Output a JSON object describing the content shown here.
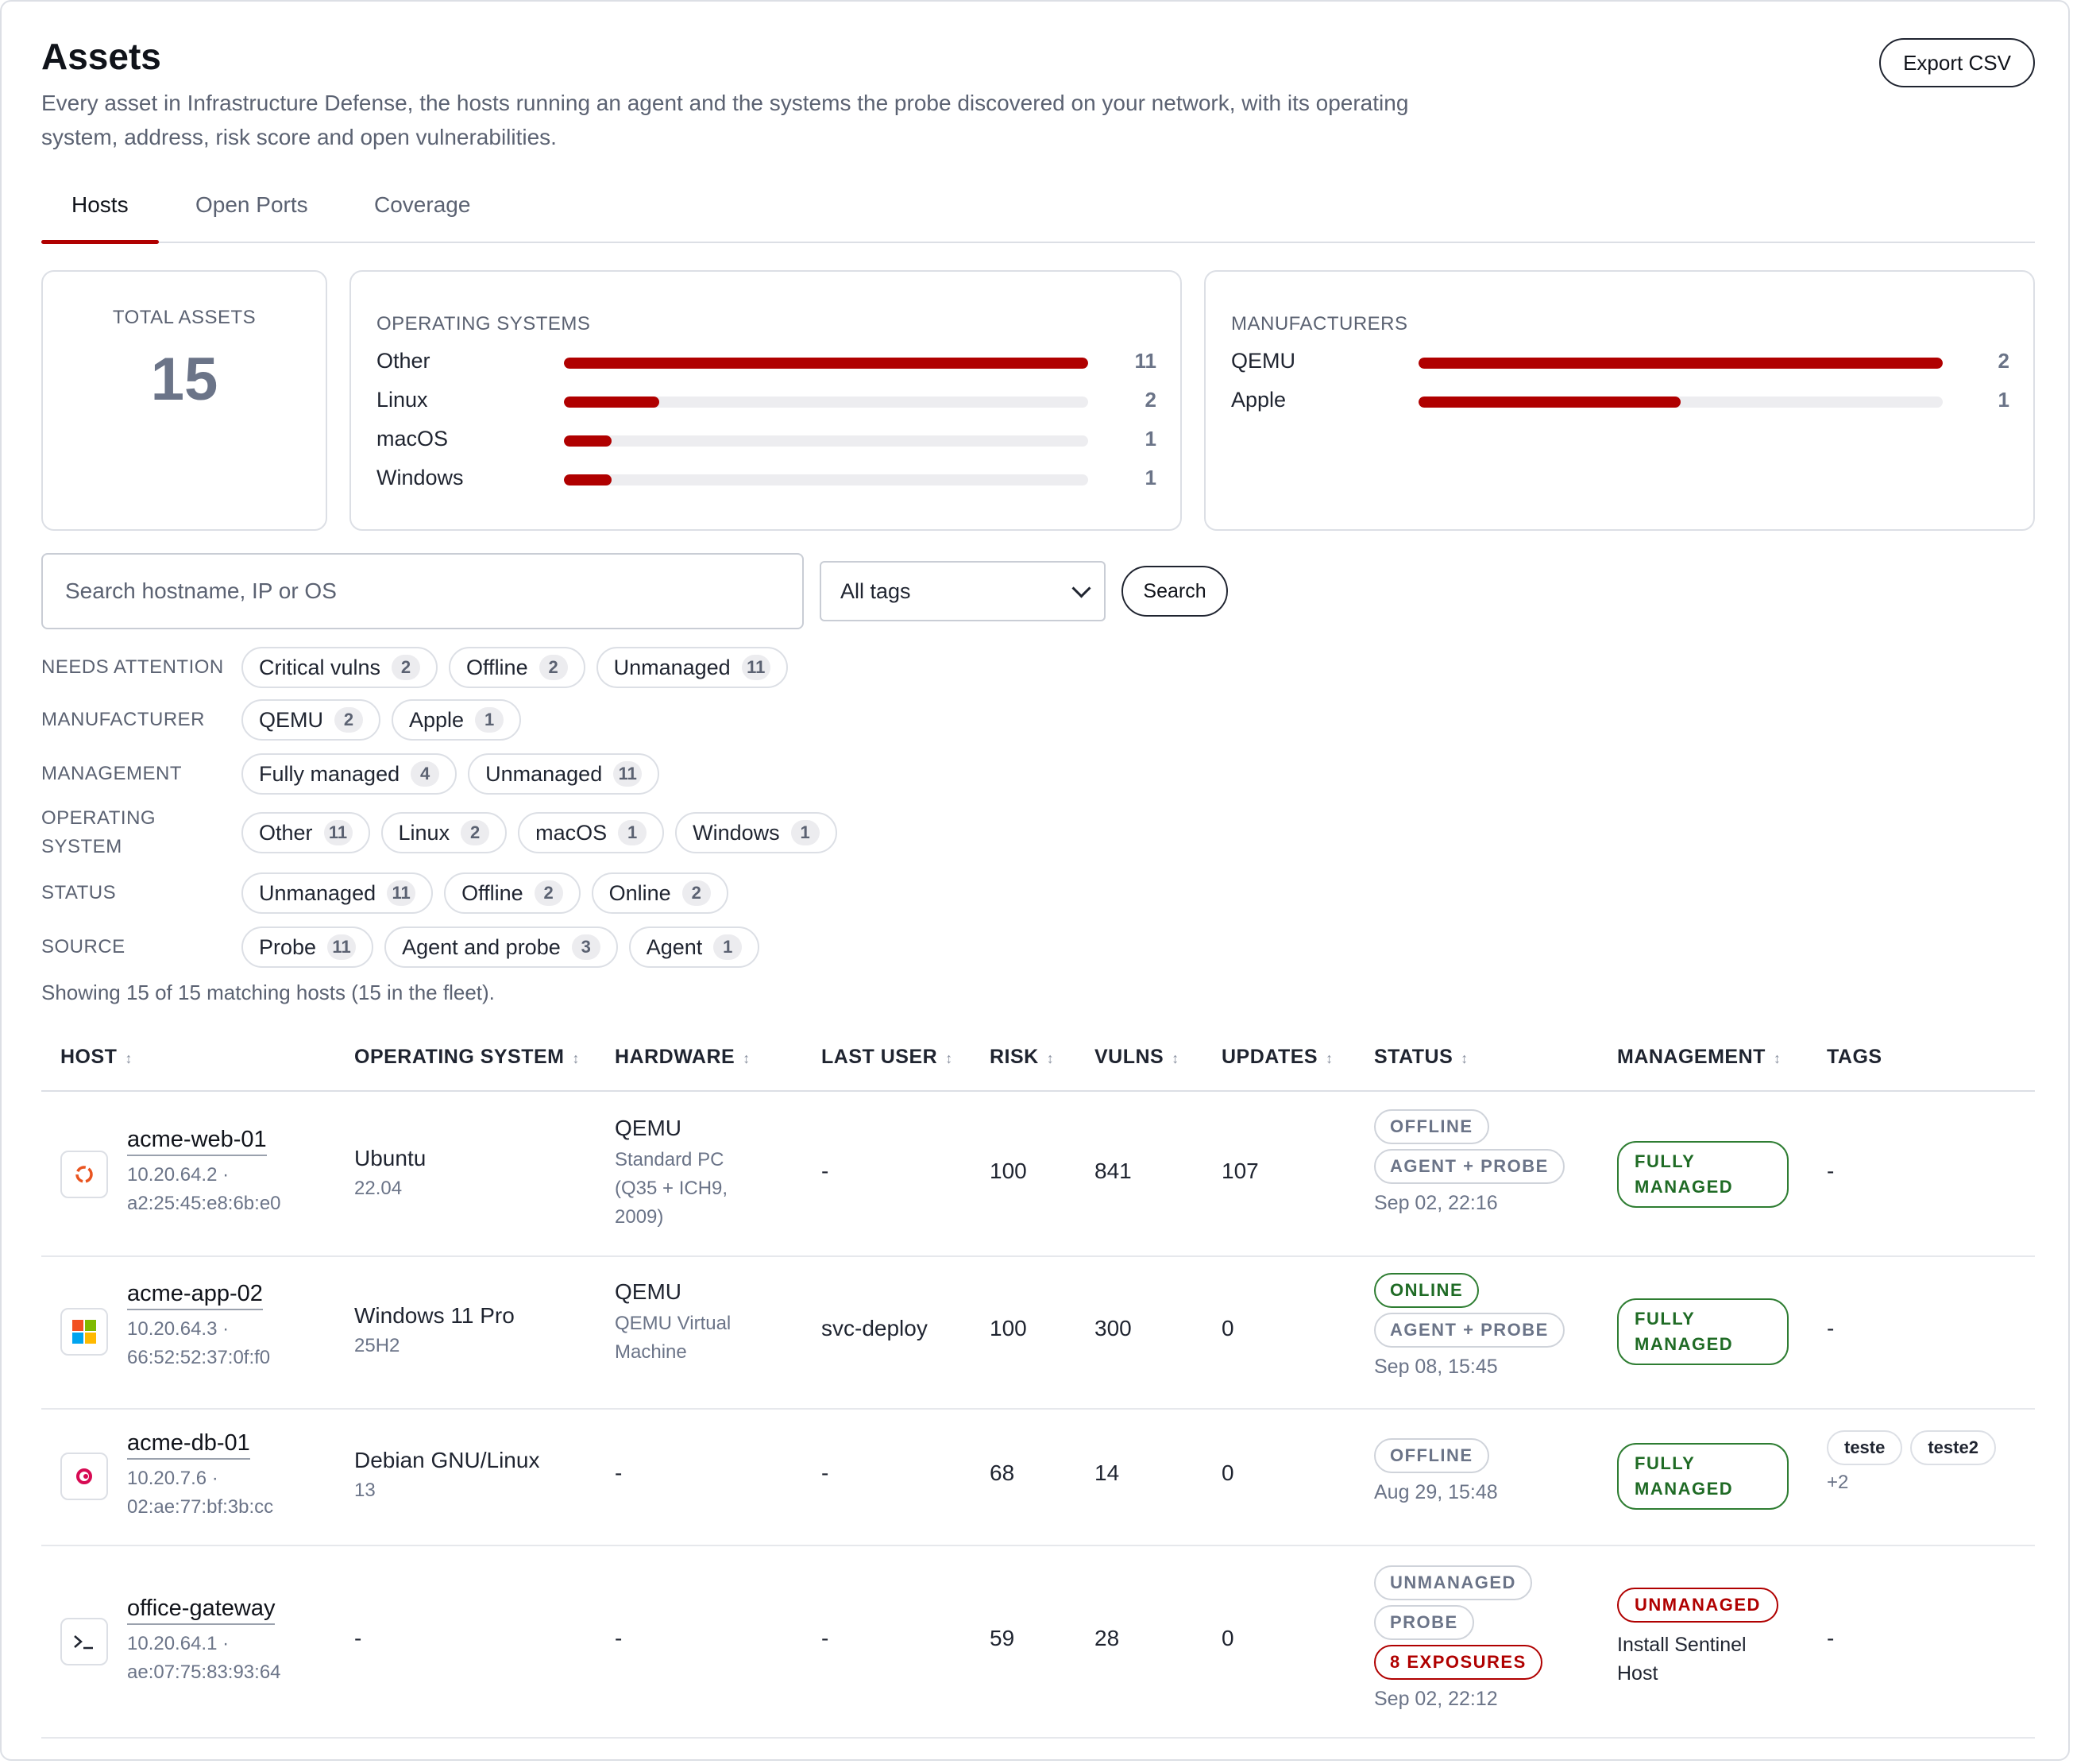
{
  "header": {
    "title": "Assets",
    "subtitle": "Every asset in Infrastructure Defense, the hosts running an agent and the systems the probe discovered on your network, with its operating system, address, risk score and open vulnerabilities.",
    "export_label": "Export CSV"
  },
  "tabs": [
    {
      "label": "Hosts",
      "active": true
    },
    {
      "label": "Open Ports",
      "active": false
    },
    {
      "label": "Coverage",
      "active": false
    }
  ],
  "stats": {
    "total": {
      "label": "TOTAL ASSETS",
      "value": "15"
    },
    "operating_systems": {
      "label": "OPERATING SYSTEMS",
      "items": [
        {
          "label": "Other",
          "count": 11
        },
        {
          "label": "Linux",
          "count": 2
        },
        {
          "label": "macOS",
          "count": 1
        },
        {
          "label": "Windows",
          "count": 1
        }
      ]
    },
    "manufacturers": {
      "label": "MANUFACTURERS",
      "items": [
        {
          "label": "QEMU",
          "count": 2
        },
        {
          "label": "Apple",
          "count": 1
        }
      ]
    }
  },
  "search": {
    "placeholder": "Search hostname, IP or OS",
    "tag_select_value": "All tags",
    "button_label": "Search"
  },
  "filters": [
    {
      "label": "NEEDS ATTENTION",
      "chips": [
        {
          "label": "Critical vulns",
          "count": "2"
        },
        {
          "label": "Offline",
          "count": "2"
        },
        {
          "label": "Unmanaged",
          "count": "11"
        }
      ]
    },
    {
      "label": "MANUFACTURER",
      "chips": [
        {
          "label": "QEMU",
          "count": "2"
        },
        {
          "label": "Apple",
          "count": "1"
        }
      ]
    },
    {
      "label": "MANAGEMENT",
      "chips": [
        {
          "label": "Fully managed",
          "count": "4"
        },
        {
          "label": "Unmanaged",
          "count": "11"
        }
      ]
    },
    {
      "label": "OPERATING SYSTEM",
      "chips": [
        {
          "label": "Other",
          "count": "11"
        },
        {
          "label": "Linux",
          "count": "2"
        },
        {
          "label": "macOS",
          "count": "1"
        },
        {
          "label": "Windows",
          "count": "1"
        }
      ]
    },
    {
      "label": "STATUS",
      "chips": [
        {
          "label": "Unmanaged",
          "count": "11"
        },
        {
          "label": "Offline",
          "count": "2"
        },
        {
          "label": "Online",
          "count": "2"
        }
      ]
    },
    {
      "label": "SOURCE",
      "chips": [
        {
          "label": "Probe",
          "count": "11"
        },
        {
          "label": "Agent and probe",
          "count": "3"
        },
        {
          "label": "Agent",
          "count": "1"
        }
      ]
    }
  ],
  "showing_text": "Showing 15 of 15 matching hosts (15 in the fleet).",
  "table": {
    "columns": [
      "HOST",
      "OPERATING SYSTEM",
      "HARDWARE",
      "LAST USER",
      "RISK",
      "VULNS",
      "UPDATES",
      "STATUS",
      "MANAGEMENT",
      "TAGS"
    ],
    "sortable": [
      true,
      true,
      true,
      true,
      true,
      true,
      true,
      true,
      true,
      false
    ],
    "rows": [
      {
        "icon": "ubuntu-icon",
        "host": "acme-web-01",
        "ip": "10.20.64.2 ·",
        "mac": "a2:25:45:e8:6b:e0",
        "os": "Ubuntu",
        "os_version": "22.04",
        "hw": "QEMU",
        "hw_detail": [
          "Standard PC",
          "(Q35 + ICH9,",
          "2009)"
        ],
        "last_user": "-",
        "risk": "100",
        "vulns": "841",
        "updates": "107",
        "status_badges": [
          {
            "label": "OFFLINE",
            "kind": "gray"
          },
          {
            "label": "AGENT + PROBE",
            "kind": "gray"
          }
        ],
        "status_time": "Sep 02, 22:16",
        "management": [
          "FULLY",
          "MANAGED"
        ],
        "management_kind": "green",
        "management_note": [],
        "tags": [],
        "tags_more": "",
        "tags_empty": "-"
      },
      {
        "icon": "windows-icon",
        "host": "acme-app-02",
        "ip": "10.20.64.3 ·",
        "mac": "66:52:52:37:0f:f0",
        "os": "Windows 11 Pro",
        "os_version": "25H2",
        "hw": "QEMU",
        "hw_detail": [
          "QEMU Virtual",
          "Machine"
        ],
        "last_user": "svc-deploy",
        "risk": "100",
        "vulns": "300",
        "updates": "0",
        "status_badges": [
          {
            "label": "ONLINE",
            "kind": "green"
          },
          {
            "label": "AGENT + PROBE",
            "kind": "gray"
          }
        ],
        "status_time": "Sep 08, 15:45",
        "management": [
          "FULLY",
          "MANAGED"
        ],
        "management_kind": "green",
        "management_note": [],
        "tags": [],
        "tags_more": "",
        "tags_empty": "-"
      },
      {
        "icon": "debian-icon",
        "host": "acme-db-01",
        "ip": "10.20.7.6 ·",
        "mac": "02:ae:77:bf:3b:cc",
        "os": "Debian GNU/Linux",
        "os_version": "13",
        "hw": "-",
        "hw_detail": [],
        "last_user": "-",
        "risk": "68",
        "vulns": "14",
        "updates": "0",
        "status_badges": [
          {
            "label": "OFFLINE",
            "kind": "gray"
          }
        ],
        "status_time": "Aug 29, 15:48",
        "management": [
          "FULLY",
          "MANAGED"
        ],
        "management_kind": "green",
        "management_note": [],
        "tags": [
          "teste",
          "teste2"
        ],
        "tags_more": "+2",
        "tags_empty": ""
      },
      {
        "icon": "terminal-icon",
        "host": "office-gateway",
        "ip": "10.20.64.1 ·",
        "mac": "ae:07:75:83:93:64",
        "os": "-",
        "os_version": "",
        "hw": "-",
        "hw_detail": [],
        "last_user": "-",
        "risk": "59",
        "vulns": "28",
        "updates": "0",
        "status_badges": [
          {
            "label": "UNMANAGED",
            "kind": "gray"
          },
          {
            "label": "PROBE",
            "kind": "gray"
          },
          {
            "label": "8 EXPOSURES",
            "kind": "red"
          }
        ],
        "status_time": "Sep 02, 22:12",
        "management": [
          "UNMANAGED"
        ],
        "management_kind": "red",
        "management_note": [
          "Install Sentinel",
          "Host"
        ],
        "tags": [],
        "tags_more": "",
        "tags_empty": "-"
      }
    ]
  },
  "colors": {
    "accent": "#b00000",
    "success": "#2e7d32",
    "muted": "#6b7488",
    "border": "#dcdfe5"
  }
}
